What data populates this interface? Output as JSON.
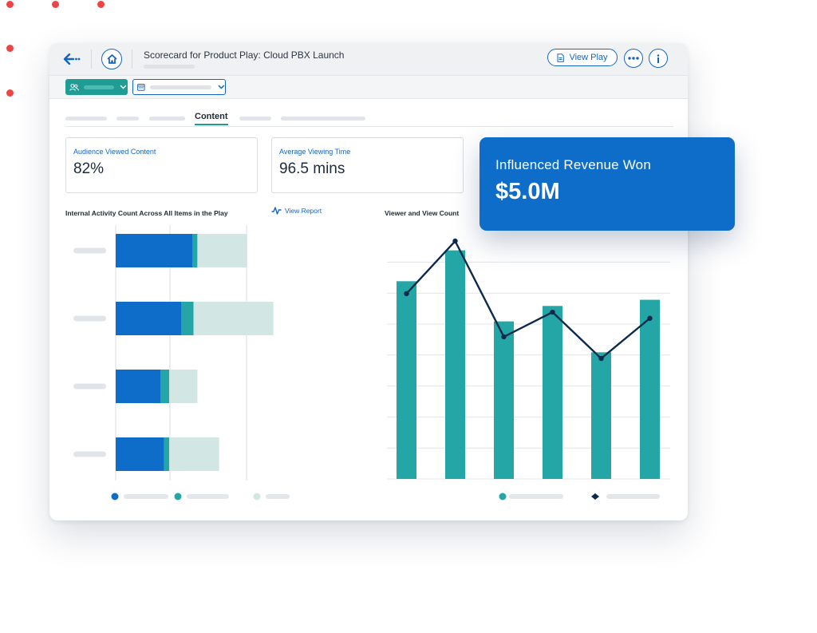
{
  "window": {
    "title": "Scorecard for Product Play: Cloud PBX Launch",
    "view_play_label": "View Play"
  },
  "tabs": {
    "active_label": "Content"
  },
  "metrics": [
    {
      "label": "Audience Viewed Content",
      "value": "82%"
    },
    {
      "label": "Average Viewing Time",
      "value": "96.5 mins"
    }
  ],
  "revenue": {
    "label": "Influenced Revenue Won",
    "value": "$5.0M"
  },
  "colors": {
    "primary_blue": "#0d6dc9",
    "teal": "#24a6a6",
    "light_teal": "#d2e7e3",
    "navy_line": "#0d2a4d"
  },
  "chart_data": [
    {
      "type": "bar",
      "orientation": "horizontal",
      "stacked": true,
      "title": "Internal Activity Count Across All Items in the Play",
      "link": "View Report",
      "series": [
        {
          "values": [
            120,
            103,
            70,
            76
          ]
        },
        {
          "values": [
            8,
            19,
            14,
            8
          ]
        },
        {
          "values": [
            78,
            125,
            44,
            78
          ]
        }
      ],
      "xlim": [
        0,
        260
      ],
      "gridlines": [
        0,
        85,
        205
      ]
    },
    {
      "type": "bar",
      "title": "Viewer and View Count",
      "series": [
        {
          "type": "bar",
          "values": [
            64,
            74,
            51,
            56,
            41,
            58
          ]
        },
        {
          "type": "line",
          "values": [
            60,
            77,
            46,
            54,
            39,
            52
          ]
        }
      ],
      "ylim": [
        0,
        80
      ],
      "grid": true
    }
  ]
}
